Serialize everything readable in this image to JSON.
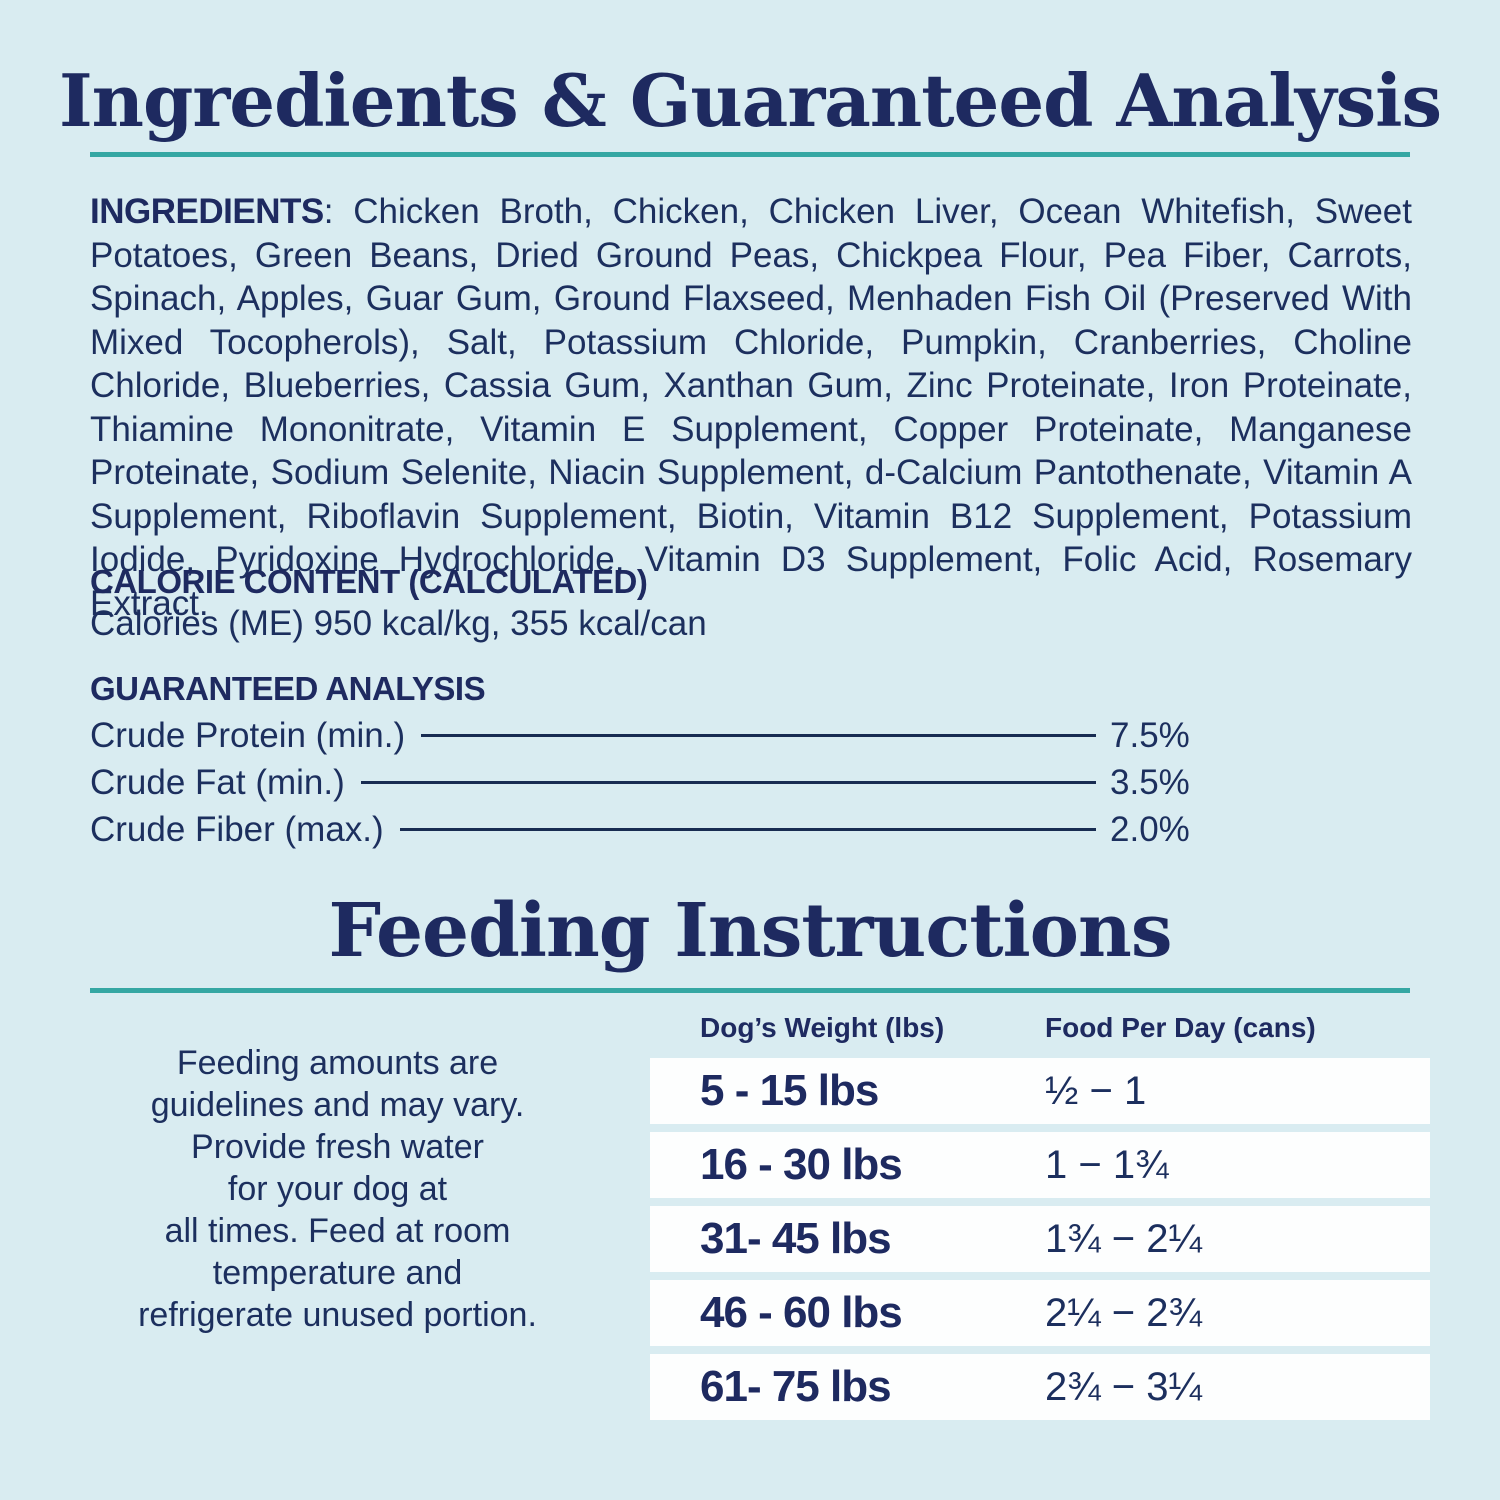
{
  "colors": {
    "background": "#d9ecf1",
    "navy_text": "#1c2f5e",
    "teal_accent": "#35a7a3",
    "row_white": "#fdfefe"
  },
  "ingredients_section": {
    "title": "Ingredients & Guaranteed Analysis",
    "ingredients_label": "INGREDIENTS",
    "ingredients_text": ": Chicken Broth, Chicken, Chicken Liver, Ocean Whitefish, Sweet Potatoes, Green Beans, Dried Ground Peas, Chickpea Flour, Pea Fiber, Carrots, Spinach, Apples, Guar Gum, Ground Flaxseed, Menhaden Fish Oil (Preserved With Mixed Tocopherols), Salt, Potassium Chloride, Pumpkin, Cranberries, Choline Chloride, Blueberries, Cassia Gum, Xanthan Gum, Zinc Proteinate, Iron Proteinate, Thiamine Mononitrate, Vitamin E Supplement, Copper Proteinate, Manganese Proteinate, Sodium Selenite, Niacin Supplement, d-Calcium Pantothenate, Vitamin A Supplement, Riboflavin Supplement, Biotin, Vitamin B12 Supplement, Potassium Iodide, Pyridoxine Hydrochloride, Vitamin D3 Supplement, Folic Acid, Rosemary Extract.",
    "calorie_heading": "CALORIE CONTENT (CALCULATED)",
    "calorie_text": "Calories (ME) 950 kcal/kg, 355 kcal/can",
    "analysis_heading": "GUARANTEED ANALYSIS",
    "analysis_rows": [
      {
        "label": "Crude Protein (min.)",
        "value": "7.5%"
      },
      {
        "label": "Crude Fat (min.)",
        "value": "3.5%"
      },
      {
        "label": "Crude Fiber (max.)",
        "value": "2.0%"
      }
    ]
  },
  "feeding_section": {
    "title": "Feeding Instructions",
    "note_lines": [
      "Feeding amounts are",
      "guidelines and may vary.",
      "Provide fresh water",
      "for your dog at",
      "all times. Feed at room",
      "temperature and",
      "refrigerate unused portion."
    ],
    "table": {
      "col1_header": "Dog’s Weight (lbs)",
      "col2_header": "Food Per Day (cans)",
      "rows": [
        {
          "weight": "5 - 15 lbs",
          "food": "½ − 1"
        },
        {
          "weight": "16 - 30 lbs",
          "food": "1 − 1¾"
        },
        {
          "weight": "31- 45 lbs",
          "food": "1¾ − 2¼"
        },
        {
          "weight": "46 - 60 lbs",
          "food": "2¼ − 2¾"
        },
        {
          "weight": "61- 75 lbs",
          "food": "2¾ − 3¼"
        }
      ]
    }
  }
}
